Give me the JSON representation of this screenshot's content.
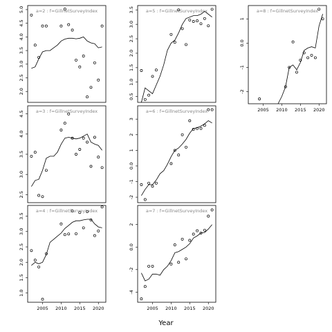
{
  "chart_data": {
    "type": "scatter",
    "xlabel": "Year",
    "panels": [
      {
        "label": "a=2 : f=GillnetSurveyIndex",
        "ylim": [
          1.6,
          5.15
        ],
        "yticks": [
          2.0,
          2.5,
          3.0,
          3.5,
          4.0,
          4.5,
          5.0
        ],
        "xlim": [
          2001,
          2022
        ],
        "xticks": [
          2005,
          2010,
          2015,
          2020
        ],
        "show_x_ticks": false,
        "points": [
          [
            2002,
            4.8
          ],
          [
            2003,
            3.7
          ],
          [
            2004,
            3.25
          ],
          [
            2005,
            4.4
          ],
          [
            2006,
            4.4
          ],
          [
            2010,
            4.4
          ],
          [
            2011,
            5.02
          ],
          [
            2012,
            4.45
          ],
          [
            2013,
            4.25
          ],
          [
            2014,
            3.15
          ],
          [
            2015,
            2.9
          ],
          [
            2016,
            3.3
          ],
          [
            2017,
            1.8
          ],
          [
            2018,
            2.15
          ],
          [
            2019,
            3.05
          ],
          [
            2020,
            2.42
          ],
          [
            2021,
            4.4
          ]
        ],
        "line": [
          [
            2002,
            2.85
          ],
          [
            2003,
            2.9
          ],
          [
            2004,
            3.2
          ],
          [
            2005,
            3.45
          ],
          [
            2006,
            3.5
          ],
          [
            2007,
            3.5
          ],
          [
            2008,
            3.6
          ],
          [
            2009,
            3.7
          ],
          [
            2010,
            3.85
          ],
          [
            2011,
            3.92
          ],
          [
            2012,
            3.95
          ],
          [
            2013,
            3.95
          ],
          [
            2014,
            3.93
          ],
          [
            2015,
            3.95
          ],
          [
            2016,
            4.0
          ],
          [
            2017,
            3.85
          ],
          [
            2018,
            3.78
          ],
          [
            2019,
            3.75
          ],
          [
            2020,
            3.6
          ],
          [
            2021,
            3.63
          ]
        ]
      },
      {
        "label": "a=3 : f=GillnetSurveyIndex",
        "ylim": [
          2.3,
          4.7
        ],
        "yticks": [
          2.5,
          3.0,
          3.5,
          4.0,
          4.5
        ],
        "xlim": [
          2001,
          2022
        ],
        "xticks": [
          2005,
          2010,
          2015,
          2020
        ],
        "show_x_ticks": false,
        "points": [
          [
            2002,
            3.45
          ],
          [
            2003,
            3.55
          ],
          [
            2004,
            2.48
          ],
          [
            2005,
            2.45
          ],
          [
            2006,
            3.1
          ],
          [
            2010,
            4.1
          ],
          [
            2011,
            4.27
          ],
          [
            2012,
            4.5
          ],
          [
            2013,
            3.9
          ],
          [
            2014,
            3.5
          ],
          [
            2015,
            3.62
          ],
          [
            2016,
            3.9
          ],
          [
            2017,
            3.8
          ],
          [
            2018,
            3.2
          ],
          [
            2019,
            3.92
          ],
          [
            2020,
            3.43
          ],
          [
            2021,
            3.17
          ]
        ],
        "line": [
          [
            2002,
            2.7
          ],
          [
            2003,
            2.85
          ],
          [
            2004,
            2.88
          ],
          [
            2005,
            3.1
          ],
          [
            2006,
            3.4
          ],
          [
            2007,
            3.45
          ],
          [
            2008,
            3.45
          ],
          [
            2009,
            3.55
          ],
          [
            2010,
            3.75
          ],
          [
            2011,
            3.9
          ],
          [
            2012,
            3.92
          ],
          [
            2013,
            3.9
          ],
          [
            2014,
            3.88
          ],
          [
            2015,
            3.9
          ],
          [
            2016,
            3.95
          ],
          [
            2017,
            4.0
          ],
          [
            2018,
            3.8
          ],
          [
            2019,
            3.75
          ],
          [
            2020,
            3.72
          ],
          [
            2021,
            3.6
          ]
        ]
      },
      {
        "label": "a=4 : f=GillnetSurveyIndex",
        "ylim": [
          0.7,
          3.85
        ],
        "yticks": [
          1.0,
          1.5,
          2.0,
          2.5,
          3.0,
          3.5
        ],
        "xlim": [
          2001,
          2022
        ],
        "xticks": [
          2005,
          2010,
          2015,
          2020
        ],
        "show_x_ticks": true,
        "points": [
          [
            2002,
            2.38
          ],
          [
            2003,
            2.07
          ],
          [
            2004,
            1.85
          ],
          [
            2005,
            0.8
          ],
          [
            2006,
            2.28
          ],
          [
            2010,
            3.25
          ],
          [
            2011,
            2.9
          ],
          [
            2012,
            2.92
          ],
          [
            2013,
            3.67
          ],
          [
            2014,
            2.93
          ],
          [
            2015,
            3.62
          ],
          [
            2016,
            3.12
          ],
          [
            2017,
            3.65
          ],
          [
            2018,
            3.38
          ],
          [
            2019,
            2.87
          ],
          [
            2020,
            3.02
          ],
          [
            2021,
            3.8
          ]
        ],
        "line": [
          [
            2002,
            1.9
          ],
          [
            2003,
            2.0
          ],
          [
            2004,
            1.95
          ],
          [
            2005,
            2.0
          ],
          [
            2006,
            2.25
          ],
          [
            2007,
            2.65
          ],
          [
            2008,
            2.75
          ],
          [
            2009,
            2.85
          ],
          [
            2010,
            2.95
          ],
          [
            2011,
            3.1
          ],
          [
            2012,
            3.2
          ],
          [
            2013,
            3.3
          ],
          [
            2014,
            3.35
          ],
          [
            2015,
            3.35
          ],
          [
            2016,
            3.38
          ],
          [
            2017,
            3.4
          ],
          [
            2018,
            3.4
          ],
          [
            2019,
            3.25
          ],
          [
            2020,
            3.15
          ],
          [
            2021,
            3.12
          ]
        ]
      },
      {
        "label": "a=5 : f=GillnetSurveyIndex",
        "ylim": [
          0.3,
          3.65
        ],
        "yticks": [
          0.5,
          1.0,
          1.5,
          2.0,
          2.5,
          3.0,
          3.5
        ],
        "xlim": [
          2001,
          2022
        ],
        "xticks": [
          2005,
          2010,
          2015,
          2020
        ],
        "show_x_ticks": false,
        "points": [
          [
            2002,
            1.4
          ],
          [
            2003,
            0.4
          ],
          [
            2004,
            0.55
          ],
          [
            2005,
            1.2
          ],
          [
            2006,
            1.42
          ],
          [
            2010,
            2.65
          ],
          [
            2011,
            2.38
          ],
          [
            2012,
            3.5
          ],
          [
            2013,
            2.85
          ],
          [
            2014,
            2.3
          ],
          [
            2015,
            3.15
          ],
          [
            2016,
            3.1
          ],
          [
            2017,
            3.12
          ],
          [
            2018,
            3.02
          ],
          [
            2019,
            3.2
          ],
          [
            2020,
            2.95
          ],
          [
            2021,
            3.52
          ]
        ],
        "line": [
          [
            2002,
            0.3
          ],
          [
            2003,
            0.8
          ],
          [
            2004,
            0.7
          ],
          [
            2005,
            0.6
          ],
          [
            2006,
            0.9
          ],
          [
            2007,
            1.2
          ],
          [
            2008,
            1.6
          ],
          [
            2009,
            2.1
          ],
          [
            2010,
            2.35
          ],
          [
            2011,
            2.45
          ],
          [
            2012,
            2.7
          ],
          [
            2013,
            3.0
          ],
          [
            2014,
            3.2
          ],
          [
            2015,
            3.25
          ],
          [
            2016,
            3.3
          ],
          [
            2017,
            3.3
          ],
          [
            2018,
            3.35
          ],
          [
            2019,
            3.45
          ],
          [
            2020,
            3.35
          ],
          [
            2021,
            3.25
          ]
        ]
      },
      {
        "label": "a=6 : f=GillnetSurveyIndex",
        "ylim": [
          -2.35,
          3.85
        ],
        "yticks": [
          -2,
          -1,
          0,
          1,
          2,
          3
        ],
        "xlim": [
          2001,
          2022
        ],
        "xticks": [
          2005,
          2010,
          2015,
          2020
        ],
        "show_x_ticks": false,
        "points": [
          [
            2002,
            -1.2
          ],
          [
            2003,
            -2.15
          ],
          [
            2004,
            -1.1
          ],
          [
            2005,
            -1.3
          ],
          [
            2006,
            -1.1
          ],
          [
            2010,
            0.15
          ],
          [
            2011,
            1.0
          ],
          [
            2012,
            0.7
          ],
          [
            2013,
            2.0
          ],
          [
            2014,
            1.2
          ],
          [
            2015,
            2.9
          ],
          [
            2016,
            2.35
          ],
          [
            2017,
            2.4
          ],
          [
            2018,
            2.4
          ],
          [
            2019,
            2.6
          ],
          [
            2020,
            3.6
          ],
          [
            2021,
            3.6
          ]
        ],
        "line": [
          [
            2002,
            -1.9
          ],
          [
            2003,
            -1.5
          ],
          [
            2004,
            -1.2
          ],
          [
            2005,
            -1.2
          ],
          [
            2006,
            -0.9
          ],
          [
            2007,
            -0.5
          ],
          [
            2008,
            -0.3
          ],
          [
            2009,
            0.1
          ],
          [
            2010,
            0.6
          ],
          [
            2011,
            1.0
          ],
          [
            2012,
            1.15
          ],
          [
            2013,
            1.4
          ],
          [
            2014,
            1.7
          ],
          [
            2015,
            2.1
          ],
          [
            2016,
            2.4
          ],
          [
            2017,
            2.45
          ],
          [
            2018,
            2.55
          ],
          [
            2019,
            2.7
          ],
          [
            2020,
            2.9
          ],
          [
            2021,
            2.75
          ]
        ]
      },
      {
        "label": "a=7 : f=GillnetSurveyIndex",
        "ylim": [
          -4.9,
          3.7
        ],
        "yticks": [
          -4,
          -2,
          0,
          2
        ],
        "xlim": [
          2001,
          2022
        ],
        "xticks": [
          2005,
          2010,
          2015,
          2020
        ],
        "show_x_ticks": true,
        "points": [
          [
            2002,
            -4.6
          ],
          [
            2003,
            -3.5
          ],
          [
            2004,
            -1.7
          ],
          [
            2005,
            -1.7
          ],
          [
            2010,
            -1.5
          ],
          [
            2011,
            0.2
          ],
          [
            2012,
            -1.35
          ],
          [
            2013,
            0.7
          ],
          [
            2014,
            -1.05
          ],
          [
            2015,
            0.6
          ],
          [
            2016,
            1.15
          ],
          [
            2017,
            1.45
          ],
          [
            2018,
            1.25
          ],
          [
            2019,
            1.5
          ],
          [
            2020,
            2.75
          ],
          [
            2021,
            3.3
          ]
        ],
        "line": [
          [
            2002,
            -2.3
          ],
          [
            2003,
            -3.0
          ],
          [
            2004,
            -2.85
          ],
          [
            2005,
            -2.4
          ],
          [
            2006,
            -2.4
          ],
          [
            2007,
            -2.5
          ],
          [
            2008,
            -2.0
          ],
          [
            2009,
            -1.7
          ],
          [
            2010,
            -1.2
          ],
          [
            2011,
            -0.5
          ],
          [
            2012,
            -0.4
          ],
          [
            2013,
            -0.2
          ],
          [
            2014,
            0.0
          ],
          [
            2015,
            0.3
          ],
          [
            2016,
            0.8
          ],
          [
            2017,
            1.0
          ],
          [
            2018,
            1.25
          ],
          [
            2019,
            1.3
          ],
          [
            2020,
            1.6
          ],
          [
            2021,
            2.0
          ]
        ]
      },
      {
        "label": "a=8 : f=GillnetSurveyIndex",
        "ylim": [
          -2.5,
          1.55
        ],
        "yticks": [
          -2,
          -1,
          0,
          1
        ],
        "xlim": [
          2001,
          2022
        ],
        "xticks": [
          2005,
          2010,
          2015,
          2020
        ],
        "show_x_ticks": true,
        "points": [
          [
            2004,
            -2.3
          ],
          [
            2011,
            -1.8
          ],
          [
            2012,
            -1.0
          ],
          [
            2013,
            0.05
          ],
          [
            2014,
            -1.2
          ],
          [
            2015,
            -0.7
          ],
          [
            2016,
            -0.4
          ],
          [
            2017,
            -0.6
          ],
          [
            2018,
            -0.5
          ],
          [
            2019,
            -0.6
          ],
          [
            2020,
            1.4
          ],
          [
            2021,
            1.0
          ]
        ],
        "line": [
          [
            2009,
            -2.5
          ],
          [
            2010,
            -2.2
          ],
          [
            2011,
            -1.8
          ],
          [
            2012,
            -1.0
          ],
          [
            2013,
            -0.9
          ],
          [
            2014,
            -1.1
          ],
          [
            2015,
            -0.8
          ],
          [
            2016,
            -0.3
          ],
          [
            2017,
            -0.2
          ],
          [
            2018,
            -0.15
          ],
          [
            2019,
            -0.2
          ],
          [
            2020,
            0.7
          ],
          [
            2021,
            1.2
          ]
        ]
      }
    ]
  }
}
